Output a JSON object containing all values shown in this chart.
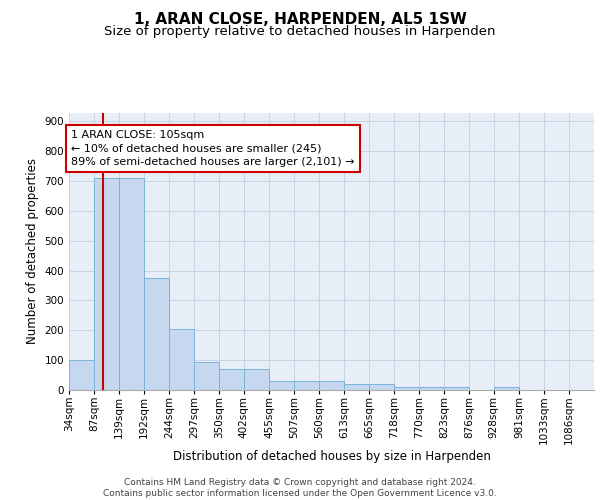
{
  "title": "1, ARAN CLOSE, HARPENDEN, AL5 1SW",
  "subtitle": "Size of property relative to detached houses in Harpenden",
  "xlabel": "Distribution of detached houses by size in Harpenden",
  "ylabel": "Number of detached properties",
  "bar_edges": [
    34,
    87,
    139,
    192,
    244,
    297,
    350,
    402,
    455,
    507,
    560,
    613,
    665,
    718,
    770,
    823,
    876,
    928,
    981,
    1033,
    1086
  ],
  "bar_heights": [
    100,
    710,
    710,
    375,
    205,
    95,
    72,
    72,
    30,
    30,
    30,
    20,
    20,
    10,
    10,
    10,
    0,
    10,
    0,
    0,
    0
  ],
  "bar_color": "#c5d8f0",
  "bar_edgecolor": "#7ab4d8",
  "grid_color": "#c8d4e4",
  "bg_color": "#e8eef8",
  "property_line_x": 105,
  "property_line_color": "#cc0000",
  "annotation_text": "1 ARAN CLOSE: 105sqm\n← 10% of detached houses are smaller (245)\n89% of semi-detached houses are larger (2,101) →",
  "annotation_box_color": "#cc0000",
  "ylim": [
    0,
    930
  ],
  "yticks": [
    0,
    100,
    200,
    300,
    400,
    500,
    600,
    700,
    800,
    900
  ],
  "tick_labels": [
    "34sqm",
    "87sqm",
    "139sqm",
    "192sqm",
    "244sqm",
    "297sqm",
    "350sqm",
    "402sqm",
    "455sqm",
    "507sqm",
    "560sqm",
    "613sqm",
    "665sqm",
    "718sqm",
    "770sqm",
    "823sqm",
    "876sqm",
    "928sqm",
    "981sqm",
    "1033sqm",
    "1086sqm"
  ],
  "footer_text": "Contains HM Land Registry data © Crown copyright and database right 2024.\nContains public sector information licensed under the Open Government Licence v3.0.",
  "title_fontsize": 11,
  "subtitle_fontsize": 9.5,
  "axis_label_fontsize": 8.5,
  "tick_fontsize": 7.5,
  "footer_fontsize": 6.5,
  "annot_fontsize": 8
}
